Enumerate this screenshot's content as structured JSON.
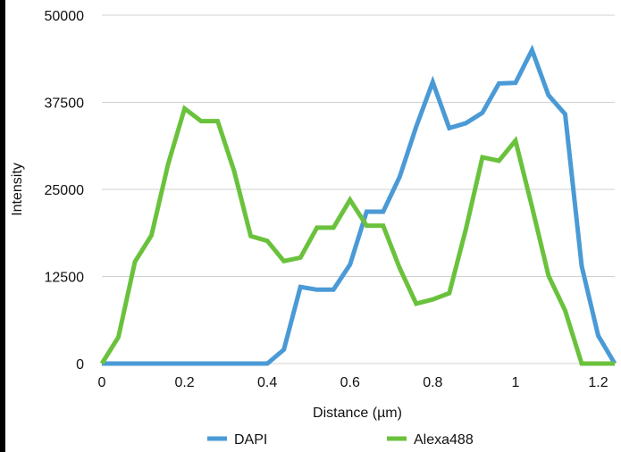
{
  "chart_data": {
    "type": "line",
    "title": "",
    "xlabel": "Distance (µm)",
    "ylabel": "Intensity",
    "xlim": [
      0,
      1.24
    ],
    "ylim": [
      0,
      50000
    ],
    "x_ticks": [
      "0",
      "0.2",
      "0.4",
      "0.6",
      "0.8",
      "1",
      "1.2"
    ],
    "x_tick_values": [
      0,
      0.2,
      0.4,
      0.6,
      0.8,
      1.0,
      1.2
    ],
    "y_ticks": [
      "0",
      "12500",
      "25000",
      "37500",
      "50000"
    ],
    "y_tick_values": [
      0,
      12500,
      25000,
      37500,
      50000
    ],
    "grid": "horizontal",
    "legend_position": "bottom",
    "x": [
      0,
      0.04,
      0.08,
      0.12,
      0.16,
      0.2,
      0.24,
      0.28,
      0.32,
      0.36,
      0.4,
      0.44,
      0.48,
      0.52,
      0.56,
      0.6,
      0.64,
      0.68,
      0.72,
      0.76,
      0.8,
      0.84,
      0.88,
      0.92,
      0.96,
      1.0,
      1.04,
      1.08,
      1.12,
      1.16,
      1.2,
      1.24
    ],
    "series": [
      {
        "name": "DAPI",
        "color": "#4a9ad6",
        "values": [
          0,
          0,
          0,
          0,
          0,
          0,
          0,
          0,
          0,
          0,
          0,
          2000,
          11000,
          10600,
          10600,
          14200,
          21800,
          21800,
          26800,
          34000,
          40400,
          33800,
          34500,
          36000,
          40200,
          40300,
          45000,
          38500,
          35800,
          14000,
          4000,
          0
        ]
      },
      {
        "name": "Alexa488",
        "color": "#6ac23c",
        "values": [
          0,
          3800,
          14600,
          18400,
          28600,
          36600,
          34800,
          34800,
          27600,
          18300,
          17600,
          14700,
          15200,
          19500,
          19500,
          23500,
          19800,
          19800,
          13700,
          8600,
          9200,
          10100,
          19300,
          29600,
          29100,
          32000,
          22500,
          12600,
          7600,
          0,
          0,
          0
        ]
      }
    ]
  }
}
